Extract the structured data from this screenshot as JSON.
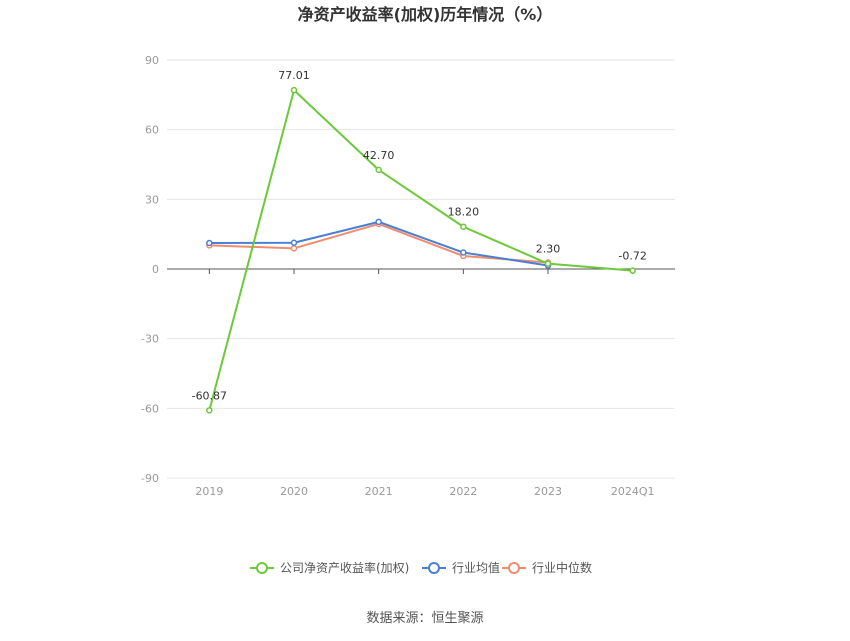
{
  "chart_data": {
    "type": "line",
    "title": "净资产收益率(加权)历年情况（%）",
    "xlabel": "",
    "ylabel": "",
    "categories": [
      "2019",
      "2020",
      "2021",
      "2022",
      "2023",
      "2024Q1"
    ],
    "ylim": [
      -90,
      90
    ],
    "yticks": [
      90,
      60,
      30,
      0,
      -30,
      -60,
      -90
    ],
    "grid": true,
    "legend_position": "bottom",
    "series": [
      {
        "name": "公司净资产收益率(加权)",
        "color": "#6cc93a",
        "values": [
          -60.87,
          77.01,
          42.7,
          18.2,
          2.3,
          -0.72
        ],
        "labels": [
          "-60.87",
          "77.01",
          "42.70",
          "18.20",
          "2.30",
          "-0.72"
        ]
      },
      {
        "name": "行业均值",
        "color": "#4a7fd4",
        "values": [
          11.2,
          11.3,
          20.3,
          7.1,
          1.5,
          null
        ]
      },
      {
        "name": "行业中位数",
        "color": "#f08c6e",
        "values": [
          10.2,
          8.9,
          19.4,
          5.6,
          2.8,
          null
        ]
      }
    ],
    "source": "数据来源：恒生聚源"
  }
}
